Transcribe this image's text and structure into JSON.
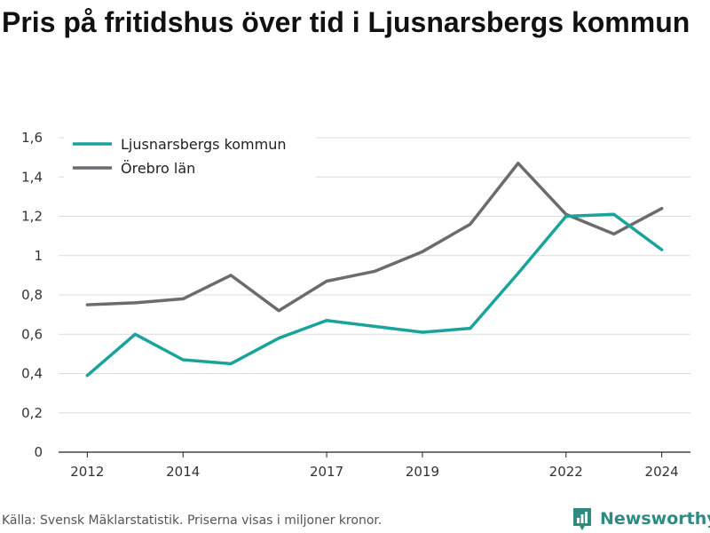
{
  "title": "Pris på fritidshus över tid i Ljusnarsbergs kommun",
  "footer": {
    "source": "Källa: Svensk Mäklarstatistik. Priserna visas i miljoner kronor."
  },
  "brand": {
    "name": "Newsworthy",
    "icon": "bar-chart-logo-icon",
    "color": "#2e8b82"
  },
  "chart_data": {
    "type": "line",
    "x": [
      2012,
      2013,
      2014,
      2015,
      2016,
      2017,
      2018,
      2019,
      2020,
      2021,
      2022,
      2023,
      2024
    ],
    "x_tick_labels": [
      "2012",
      "2014",
      "2017",
      "2019",
      "2022",
      "2024"
    ],
    "x_tick_values": [
      2012,
      2014,
      2017,
      2019,
      2022,
      2024
    ],
    "xlim": [
      2011.4,
      2024.6
    ],
    "ylim": [
      0,
      1.6
    ],
    "y_tick_labels": [
      "0",
      "0,2",
      "0,4",
      "0,6",
      "0,8",
      "1",
      "1,2",
      "1,4",
      "1,6"
    ],
    "y_tick_values": [
      0,
      0.2,
      0.4,
      0.6,
      0.8,
      1.0,
      1.2,
      1.4,
      1.6
    ],
    "grid": true,
    "legend_position": "top-left",
    "series": [
      {
        "name": "Ljusnarsbergs kommun",
        "color": "#1aa39a",
        "values": [
          0.39,
          0.6,
          0.47,
          0.45,
          0.58,
          0.67,
          0.64,
          0.61,
          0.63,
          0.91,
          1.2,
          1.21,
          1.03
        ]
      },
      {
        "name": "Örebro län",
        "color": "#6b6b70",
        "values": [
          0.75,
          0.76,
          0.78,
          0.9,
          0.72,
          0.87,
          0.92,
          1.02,
          1.16,
          1.47,
          1.21,
          1.11,
          1.24
        ]
      }
    ]
  }
}
